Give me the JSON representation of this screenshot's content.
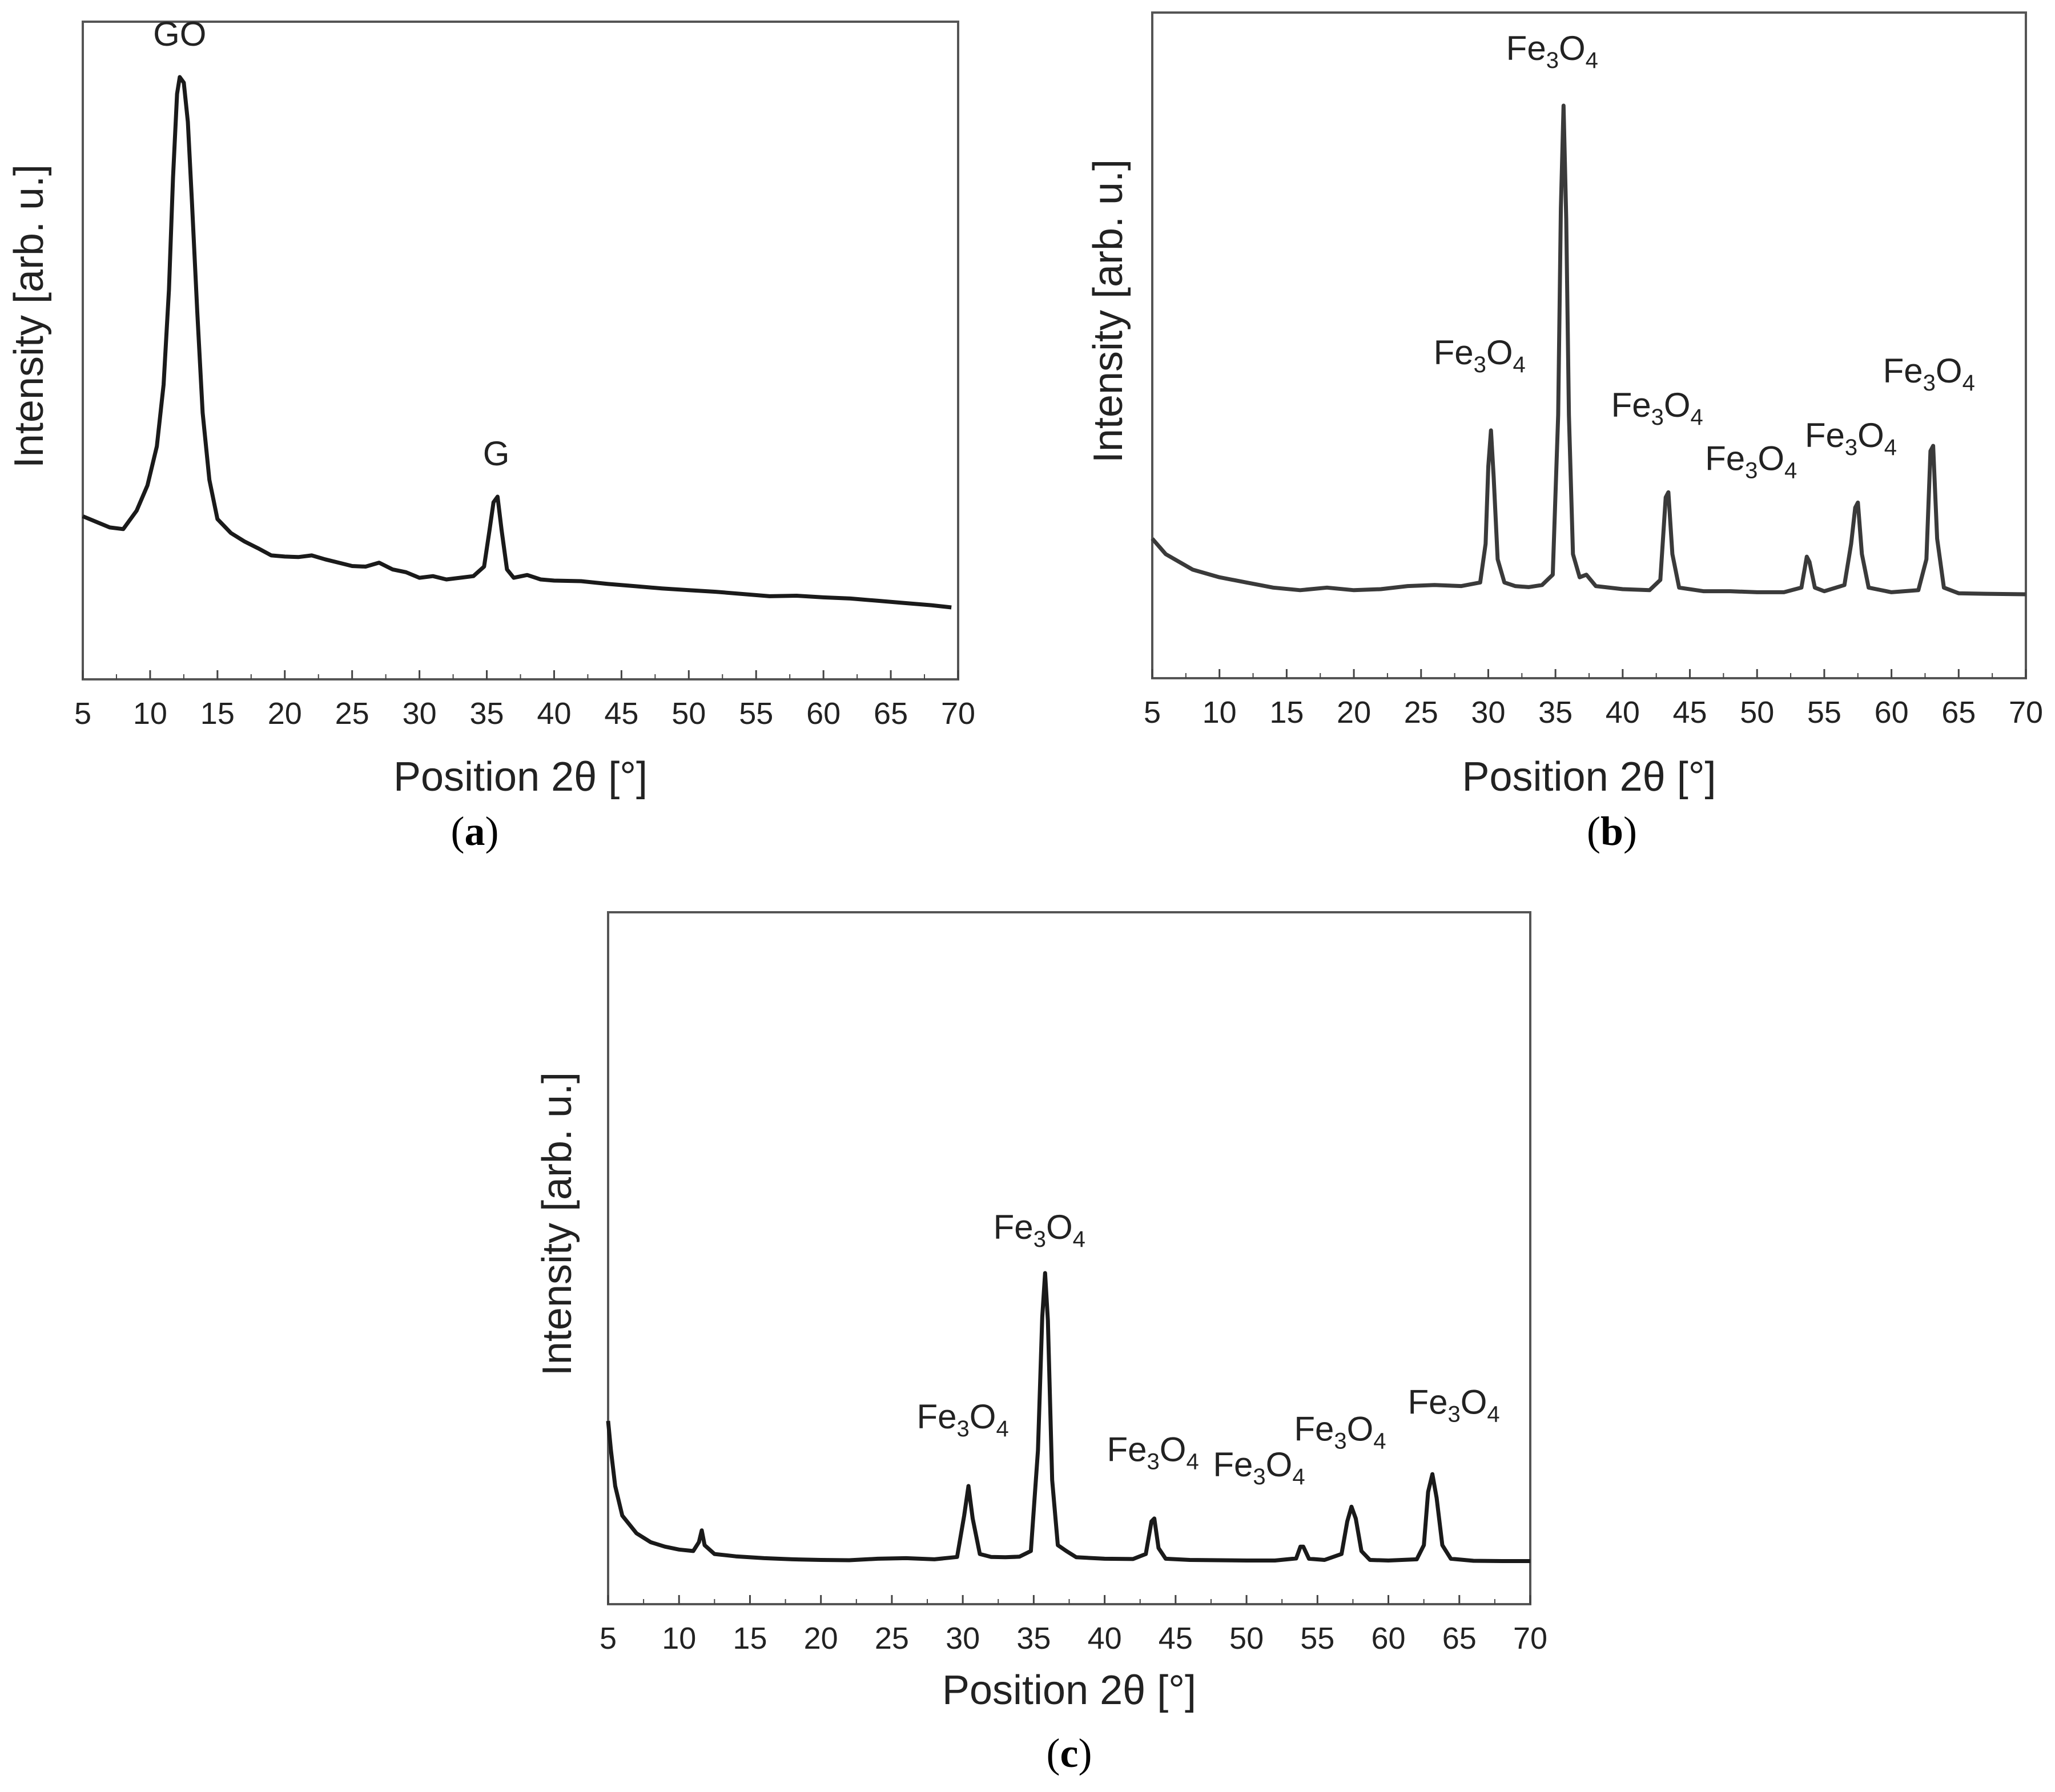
{
  "chart_data": [
    {
      "id": "a",
      "type": "line",
      "panel_label": "a",
      "xlabel": "Position 2θ [°]",
      "ylabel": "Intensity [arb. u.]",
      "xlim": [
        5,
        70
      ],
      "xticks": [
        5,
        10,
        15,
        20,
        25,
        30,
        35,
        40,
        45,
        50,
        55,
        60,
        65,
        70
      ],
      "ylim": [
        0,
        100
      ],
      "color": "#1a1a1a",
      "annotations": [
        {
          "text": "GO",
          "x": 12.2,
          "y": 100
        },
        {
          "text": "G",
          "x": 35.7,
          "y": 26
        }
      ],
      "series": [
        {
          "points": [
            [
              5.0,
              21.5
            ],
            [
              6.0,
              20.5
            ],
            [
              7.0,
              19.5
            ],
            [
              8.0,
              19.2
            ],
            [
              9.0,
              22.5
            ],
            [
              9.8,
              27
            ],
            [
              10.5,
              34
            ],
            [
              11.0,
              45
            ],
            [
              11.4,
              62
            ],
            [
              11.7,
              82
            ],
            [
              12.0,
              97
            ],
            [
              12.2,
              100
            ],
            [
              12.5,
              99
            ],
            [
              12.8,
              92
            ],
            [
              13.1,
              78
            ],
            [
              13.5,
              58
            ],
            [
              13.9,
              40
            ],
            [
              14.4,
              28
            ],
            [
              15.0,
              21
            ],
            [
              16.0,
              18.5
            ],
            [
              17.0,
              17
            ],
            [
              18.0,
              15.8
            ],
            [
              19.0,
              14.5
            ],
            [
              20.0,
              14.3
            ],
            [
              21.0,
              14.2
            ],
            [
              22.0,
              14.5
            ],
            [
              23.0,
              13.8
            ],
            [
              24.0,
              13.2
            ],
            [
              25.0,
              12.6
            ],
            [
              26.0,
              12.5
            ],
            [
              27.0,
              13.2
            ],
            [
              28.0,
              12
            ],
            [
              29.0,
              11.5
            ],
            [
              30.0,
              10.5
            ],
            [
              31.0,
              10.8
            ],
            [
              32.0,
              10.2
            ],
            [
              33.0,
              10.5
            ],
            [
              34.0,
              10.8
            ],
            [
              34.8,
              12.5
            ],
            [
              35.2,
              19
            ],
            [
              35.5,
              24
            ],
            [
              35.8,
              25
            ],
            [
              36.1,
              19
            ],
            [
              36.5,
              12
            ],
            [
              37.0,
              10.5
            ],
            [
              38.0,
              11
            ],
            [
              39.0,
              10.2
            ],
            [
              40.0,
              10.0
            ],
            [
              42.0,
              9.9
            ],
            [
              44.0,
              9.4
            ],
            [
              46.0,
              9.0
            ],
            [
              48.0,
              8.6
            ],
            [
              50.0,
              8.3
            ],
            [
              52.0,
              8.0
            ],
            [
              54.0,
              7.6
            ],
            [
              56.0,
              7.2
            ],
            [
              58.0,
              7.3
            ],
            [
              60.0,
              7.0
            ],
            [
              62.0,
              6.8
            ],
            [
              64.0,
              6.4
            ],
            [
              66.0,
              6.0
            ],
            [
              68.0,
              5.6
            ],
            [
              69.5,
              5.2
            ]
          ]
        }
      ]
    },
    {
      "id": "b",
      "type": "line",
      "panel_label": "b",
      "xlabel": "Position 2θ [°]",
      "ylabel": "Intensity [arb. u.]",
      "xlim": [
        5,
        70
      ],
      "xticks": [
        5,
        10,
        15,
        20,
        25,
        30,
        35,
        40,
        45,
        50,
        55,
        60,
        65,
        70
      ],
      "ylim": [
        0,
        100
      ],
      "color": "#3a3a3a",
      "annotations": [
        {
          "text_parts": [
            "Fe",
            "3",
            "O",
            "4"
          ],
          "x": 30.2,
          "y": 41
        },
        {
          "text_parts": [
            "Fe",
            "3",
            "O",
            "4"
          ],
          "x": 35.6,
          "y": 100
        },
        {
          "text_parts": [
            "Fe",
            "3",
            "O",
            "4"
          ],
          "x": 43.2,
          "y": 28
        },
        {
          "text_parts": [
            "Fe",
            "3",
            "O",
            "4"
          ],
          "x": 53.8,
          "y": 16
        },
        {
          "text_parts": [
            "Fe",
            "3",
            "O",
            "4"
          ],
          "x": 57.4,
          "y": 26
        },
        {
          "text_parts": [
            "Fe",
            "3",
            "O",
            "4"
          ],
          "x": 63.0,
          "y": 38
        }
      ],
      "series": [
        {
          "points": [
            [
              5.0,
              16
            ],
            [
              6.0,
              13
            ],
            [
              7.0,
              11.5
            ],
            [
              8.0,
              10
            ],
            [
              10.0,
              8.5
            ],
            [
              12.0,
              7.5
            ],
            [
              14.0,
              6.5
            ],
            [
              16.0,
              6
            ],
            [
              18.0,
              6.5
            ],
            [
              20.0,
              6
            ],
            [
              22.0,
              6.2
            ],
            [
              24.0,
              6.8
            ],
            [
              26.0,
              7.0
            ],
            [
              28.0,
              6.8
            ],
            [
              29.4,
              7.5
            ],
            [
              29.8,
              15
            ],
            [
              30.0,
              30
            ],
            [
              30.2,
              37
            ],
            [
              30.4,
              28
            ],
            [
              30.7,
              12
            ],
            [
              31.2,
              7.5
            ],
            [
              32.0,
              6.8
            ],
            [
              33.0,
              6.6
            ],
            [
              34.0,
              7.0
            ],
            [
              34.8,
              9
            ],
            [
              35.2,
              40
            ],
            [
              35.4,
              80
            ],
            [
              35.6,
              100
            ],
            [
              35.8,
              78
            ],
            [
              36.0,
              40
            ],
            [
              36.3,
              13
            ],
            [
              36.8,
              8.5
            ],
            [
              37.3,
              9.0
            ],
            [
              38.0,
              6.8
            ],
            [
              40.0,
              6.2
            ],
            [
              42.0,
              6.0
            ],
            [
              42.8,
              8
            ],
            [
              43.2,
              24
            ],
            [
              43.4,
              25
            ],
            [
              43.7,
              13
            ],
            [
              44.2,
              6.5
            ],
            [
              46.0,
              5.8
            ],
            [
              48.0,
              5.8
            ],
            [
              50.0,
              5.6
            ],
            [
              52.0,
              5.6
            ],
            [
              53.3,
              6.5
            ],
            [
              53.7,
              12.5
            ],
            [
              53.9,
              11.5
            ],
            [
              54.3,
              6.5
            ],
            [
              55.0,
              5.8
            ],
            [
              56.5,
              7.0
            ],
            [
              57.0,
              15
            ],
            [
              57.3,
              22
            ],
            [
              57.5,
              23
            ],
            [
              57.8,
              13
            ],
            [
              58.3,
              6.5
            ],
            [
              60.0,
              5.6
            ],
            [
              62.0,
              6.0
            ],
            [
              62.6,
              12
            ],
            [
              62.9,
              33
            ],
            [
              63.1,
              34
            ],
            [
              63.4,
              16
            ],
            [
              63.9,
              6.5
            ],
            [
              65.0,
              5.4
            ],
            [
              67.0,
              5.3
            ],
            [
              70.0,
              5.2
            ]
          ]
        }
      ]
    },
    {
      "id": "c",
      "type": "line",
      "panel_label": "c",
      "xlabel": "Position 2θ [°]",
      "ylabel": "Intensity [arb. u.]",
      "xlim": [
        5,
        70
      ],
      "xticks": [
        5,
        10,
        15,
        20,
        25,
        30,
        35,
        40,
        45,
        50,
        55,
        60,
        65,
        70
      ],
      "ylim": [
        0,
        100
      ],
      "color": "#1a1a1a",
      "annotations": [
        {
          "text_parts": [
            "Fe",
            "3",
            "O",
            "4"
          ],
          "x": 30.4,
          "y": 32
        },
        {
          "text_parts": [
            "Fe",
            "3",
            "O",
            "4"
          ],
          "x": 35.8,
          "y": 100
        },
        {
          "text_parts": [
            "Fe",
            "3",
            "O",
            "4"
          ],
          "x": 43.4,
          "y": 20
        },
        {
          "text_parts": [
            "Fe",
            "3",
            "O",
            "4"
          ],
          "x": 53.9,
          "y": 10
        },
        {
          "text_parts": [
            "Fe",
            "3",
            "O",
            "4"
          ],
          "x": 57.4,
          "y": 25
        },
        {
          "text_parts": [
            "Fe",
            "3",
            "O",
            "4"
          ],
          "x": 63.0,
          "y": 36
        }
      ],
      "series": [
        {
          "points": [
            [
              5.0,
              50
            ],
            [
              5.2,
              40
            ],
            [
              5.5,
              28
            ],
            [
              6.0,
              18
            ],
            [
              7.0,
              12
            ],
            [
              8.0,
              9
            ],
            [
              9.0,
              7.5
            ],
            [
              10.0,
              6.5
            ],
            [
              11.0,
              6
            ],
            [
              11.4,
              9
            ],
            [
              11.6,
              13
            ],
            [
              11.8,
              8
            ],
            [
              12.5,
              5.0
            ],
            [
              14.0,
              4.2
            ],
            [
              16.0,
              3.6
            ],
            [
              18.0,
              3.2
            ],
            [
              20.0,
              3.0
            ],
            [
              22.0,
              2.9
            ],
            [
              24.0,
              3.4
            ],
            [
              26.0,
              3.6
            ],
            [
              28.0,
              3.2
            ],
            [
              29.6,
              4.0
            ],
            [
              30.1,
              18
            ],
            [
              30.4,
              28
            ],
            [
              30.7,
              17
            ],
            [
              31.2,
              5
            ],
            [
              32.0,
              4.0
            ],
            [
              33.0,
              3.9
            ],
            [
              34.0,
              4.1
            ],
            [
              34.8,
              6
            ],
            [
              35.3,
              40
            ],
            [
              35.6,
              85
            ],
            [
              35.8,
              100
            ],
            [
              36.0,
              84
            ],
            [
              36.3,
              30
            ],
            [
              36.7,
              8
            ],
            [
              37.3,
              6
            ],
            [
              38.0,
              3.9
            ],
            [
              40.0,
              3.4
            ],
            [
              42.0,
              3.3
            ],
            [
              42.9,
              5
            ],
            [
              43.3,
              16
            ],
            [
              43.5,
              17
            ],
            [
              43.8,
              7
            ],
            [
              44.3,
              3.4
            ],
            [
              46.0,
              3.0
            ],
            [
              48.0,
              2.9
            ],
            [
              50.0,
              2.8
            ],
            [
              52.0,
              2.8
            ],
            [
              53.5,
              3.5
            ],
            [
              53.8,
              7.5
            ],
            [
              54.0,
              7.5
            ],
            [
              54.4,
              3.4
            ],
            [
              55.5,
              3.0
            ],
            [
              56.7,
              5
            ],
            [
              57.1,
              16
            ],
            [
              57.4,
              21
            ],
            [
              57.7,
              17
            ],
            [
              58.1,
              6
            ],
            [
              58.7,
              3.0
            ],
            [
              60.0,
              2.8
            ],
            [
              62.0,
              3.2
            ],
            [
              62.5,
              8
            ],
            [
              62.8,
              26
            ],
            [
              63.1,
              32
            ],
            [
              63.4,
              24
            ],
            [
              63.8,
              8
            ],
            [
              64.4,
              3.4
            ],
            [
              66.0,
              2.7
            ],
            [
              68.0,
              2.6
            ],
            [
              70.0,
              2.6
            ]
          ]
        }
      ]
    }
  ]
}
